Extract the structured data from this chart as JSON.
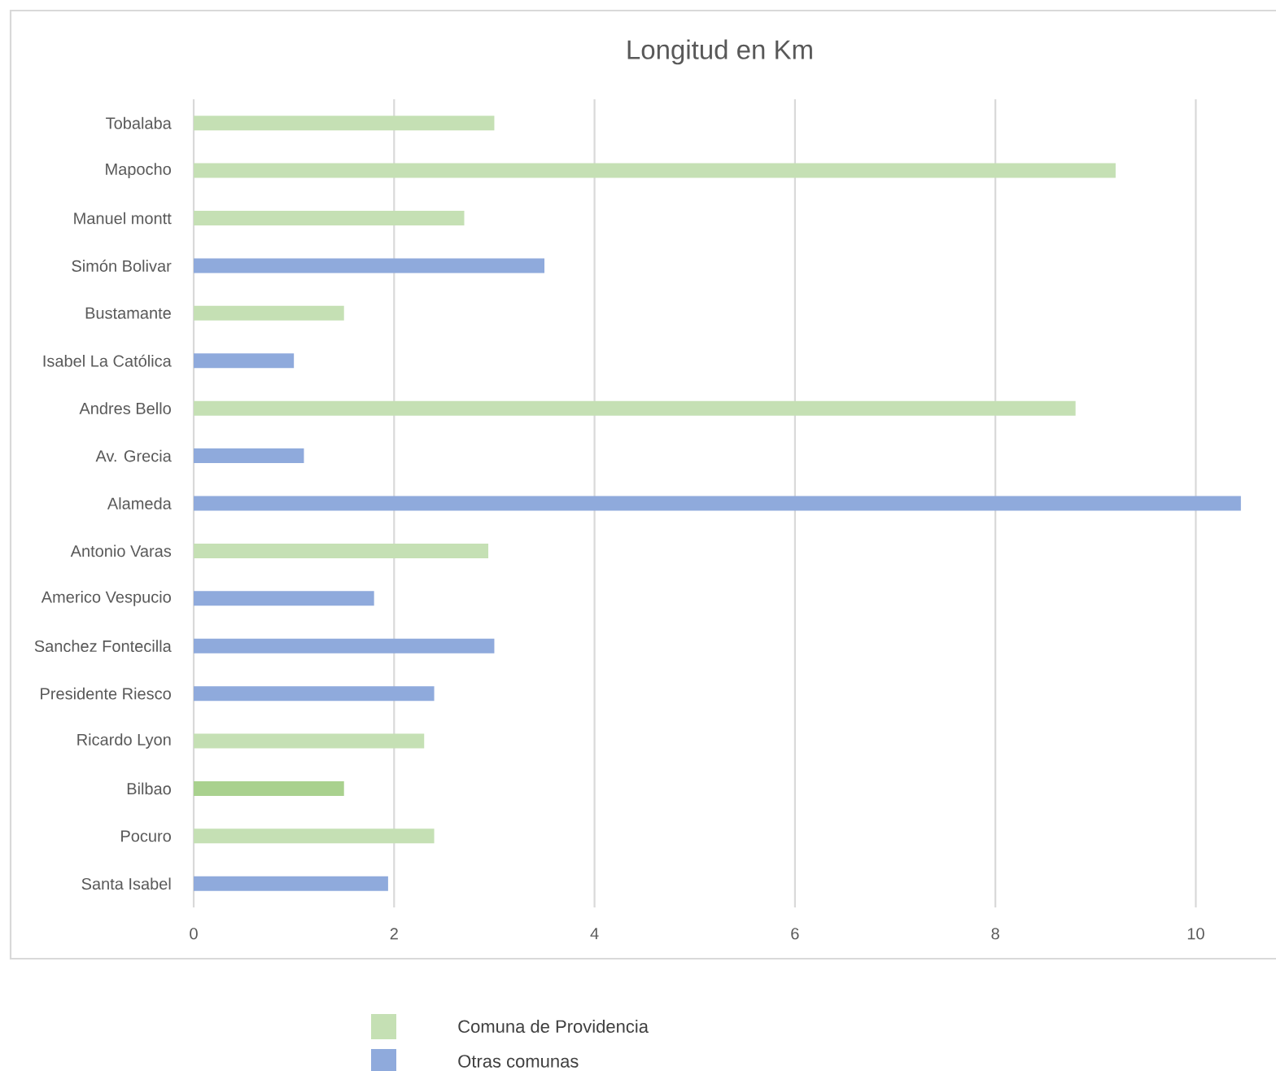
{
  "chart_data": {
    "type": "bar",
    "orientation": "horizontal",
    "title": "Longitud en Km",
    "categories": [
      "Tobalaba",
      "Mapocho",
      "Manuel montt",
      "Simón Bolivar",
      "Bustamante",
      "Isabel La Católica",
      "Andres Bello",
      "Av. Grecia",
      "Alameda",
      "Antonio Varas",
      "Americo Vespucio",
      "Sanchez Fontecilla",
      "Presidente Riesco",
      "Ricardo Lyon",
      "Bilbao",
      "Pocuro",
      "Santa Isabel"
    ],
    "series": [
      {
        "name": "Comuna de Providencia",
        "color": "#c5e0b4",
        "colors": [
          "#c5e0b4",
          "#c5e0b4",
          "#c5e0b4",
          null,
          "#c5e0b4",
          null,
          "#c5e0b4",
          null,
          null,
          "#c5e0b4",
          null,
          null,
          null,
          "#c5e0b4",
          "#a9d18e",
          "#c5e0b4",
          null
        ],
        "values": [
          3.0,
          9.2,
          2.7,
          null,
          1.5,
          null,
          8.8,
          null,
          null,
          2.94,
          null,
          null,
          null,
          2.3,
          1.5,
          2.4,
          null
        ]
      },
      {
        "name": "Otras comunas",
        "color": "#8faadc",
        "values": [
          null,
          null,
          null,
          3.5,
          null,
          1.0,
          null,
          1.1,
          10.45,
          null,
          1.8,
          3.0,
          2.4,
          null,
          null,
          null,
          1.94
        ]
      }
    ],
    "xlim": [
      0,
      10.5
    ],
    "xticks": [
      0,
      2,
      4,
      6,
      8,
      10
    ],
    "grid": "x",
    "legend": "bottom"
  }
}
